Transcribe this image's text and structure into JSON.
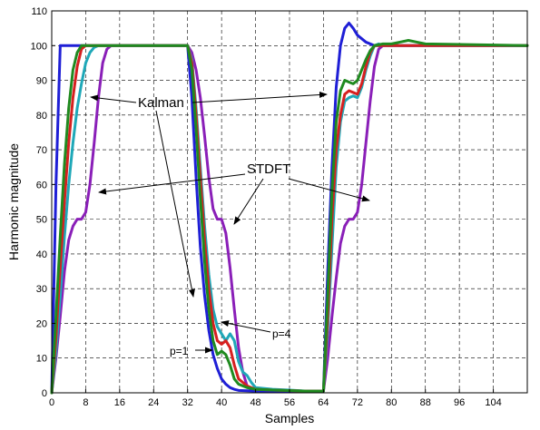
{
  "chart_data": {
    "type": "line",
    "title": "",
    "xlabel": "Samples",
    "ylabel": "Harmonic magnitude",
    "xlim": [
      0,
      112
    ],
    "ylim": [
      0,
      110
    ],
    "x_ticks": [
      0,
      8,
      16,
      24,
      32,
      40,
      48,
      56,
      64,
      72,
      80,
      88,
      96,
      104
    ],
    "y_ticks": [
      0,
      10,
      20,
      30,
      40,
      50,
      60,
      70,
      80,
      90,
      100,
      110
    ],
    "grid": true,
    "series": [
      {
        "color": "#8a1fb8",
        "points": [
          [
            0,
            0
          ],
          [
            1,
            10
          ],
          [
            2,
            22
          ],
          [
            3,
            35
          ],
          [
            4,
            44
          ],
          [
            5,
            48
          ],
          [
            6,
            50
          ],
          [
            7,
            50
          ],
          [
            8,
            52
          ],
          [
            9,
            60
          ],
          [
            10,
            72
          ],
          [
            11,
            85
          ],
          [
            12,
            95
          ],
          [
            13,
            99
          ],
          [
            14,
            100
          ],
          [
            16,
            100
          ],
          [
            32,
            100
          ],
          [
            33,
            98
          ],
          [
            34,
            93
          ],
          [
            35,
            85
          ],
          [
            36,
            74
          ],
          [
            37,
            62
          ],
          [
            38,
            53
          ],
          [
            39,
            50
          ],
          [
            40,
            50
          ],
          [
            41,
            46
          ],
          [
            42,
            36
          ],
          [
            43,
            24
          ],
          [
            44,
            13
          ],
          [
            45,
            6
          ],
          [
            46,
            2
          ],
          [
            47,
            1
          ],
          [
            48,
            0.5
          ],
          [
            64,
            0.5
          ],
          [
            65,
            10
          ],
          [
            66,
            22
          ],
          [
            67,
            33
          ],
          [
            68,
            43
          ],
          [
            69,
            48
          ],
          [
            70,
            50
          ],
          [
            71,
            50
          ],
          [
            72,
            52
          ],
          [
            73,
            60
          ],
          [
            74,
            72
          ],
          [
            75,
            84
          ],
          [
            76,
            94
          ],
          [
            77,
            99
          ],
          [
            78,
            100
          ],
          [
            112,
            100
          ]
        ]
      },
      {
        "color": "#1f1fd6",
        "points": [
          [
            0,
            0
          ],
          [
            1,
            60
          ],
          [
            2,
            100
          ],
          [
            32,
            100
          ],
          [
            33,
            85
          ],
          [
            34,
            62
          ],
          [
            35,
            42
          ],
          [
            36,
            28
          ],
          [
            37,
            18
          ],
          [
            38,
            11
          ],
          [
            39,
            7
          ],
          [
            40,
            4
          ],
          [
            41,
            2.5
          ],
          [
            42,
            1.5
          ],
          [
            43,
            1
          ],
          [
            44,
            0.7
          ],
          [
            48,
            0.5
          ],
          [
            64,
            0.5
          ],
          [
            65,
            35
          ],
          [
            66,
            65
          ],
          [
            67,
            88
          ],
          [
            68,
            100
          ],
          [
            69,
            105
          ],
          [
            70,
            106.5
          ],
          [
            71,
            105
          ],
          [
            72,
            103
          ],
          [
            74,
            101
          ],
          [
            76,
            100
          ],
          [
            112,
            100
          ]
        ]
      },
      {
        "color": "#1fa8b8",
        "points": [
          [
            0,
            0
          ],
          [
            1,
            12
          ],
          [
            2,
            28
          ],
          [
            3,
            45
          ],
          [
            4,
            60
          ],
          [
            5,
            72
          ],
          [
            6,
            82
          ],
          [
            7,
            89
          ],
          [
            8,
            95
          ],
          [
            9,
            98
          ],
          [
            10,
            99.5
          ],
          [
            11,
            100
          ],
          [
            32,
            100
          ],
          [
            33,
            96
          ],
          [
            34,
            82
          ],
          [
            35,
            65
          ],
          [
            36,
            48
          ],
          [
            37,
            34
          ],
          [
            38,
            24
          ],
          [
            39,
            19
          ],
          [
            40,
            17
          ],
          [
            41,
            15
          ],
          [
            42,
            17
          ],
          [
            43,
            15
          ],
          [
            44,
            9
          ],
          [
            45,
            6
          ],
          [
            46,
            5
          ],
          [
            47,
            3
          ],
          [
            48,
            1.5
          ],
          [
            52,
            1
          ],
          [
            56,
            0.8
          ],
          [
            60,
            0.5
          ],
          [
            64,
            0.5
          ],
          [
            65,
            18
          ],
          [
            66,
            42
          ],
          [
            67,
            65
          ],
          [
            68,
            78
          ],
          [
            69,
            84
          ],
          [
            70,
            85
          ],
          [
            71,
            85.5
          ],
          [
            72,
            85
          ],
          [
            73,
            88
          ],
          [
            74,
            93
          ],
          [
            75,
            97
          ],
          [
            76,
            100
          ],
          [
            77,
            100.5
          ],
          [
            78,
            100
          ],
          [
            80,
            100
          ],
          [
            112,
            100
          ]
        ]
      },
      {
        "color": "#d62020",
        "points": [
          [
            0,
            0
          ],
          [
            1,
            16
          ],
          [
            2,
            36
          ],
          [
            3,
            55
          ],
          [
            4,
            72
          ],
          [
            5,
            85
          ],
          [
            6,
            94
          ],
          [
            7,
            99
          ],
          [
            8,
            100
          ],
          [
            32,
            100
          ],
          [
            33,
            95
          ],
          [
            34,
            80
          ],
          [
            35,
            62
          ],
          [
            36,
            44
          ],
          [
            37,
            30
          ],
          [
            38,
            20
          ],
          [
            39,
            15
          ],
          [
            40,
            14
          ],
          [
            41,
            15
          ],
          [
            42,
            13
          ],
          [
            43,
            8
          ],
          [
            44,
            4
          ],
          [
            45,
            3
          ],
          [
            46,
            2
          ],
          [
            48,
            1
          ],
          [
            52,
            0.8
          ],
          [
            60,
            0.5
          ],
          [
            64,
            0.5
          ],
          [
            65,
            22
          ],
          [
            66,
            50
          ],
          [
            67,
            70
          ],
          [
            68,
            80
          ],
          [
            69,
            86
          ],
          [
            70,
            87
          ],
          [
            71,
            86.5
          ],
          [
            72,
            86
          ],
          [
            73,
            89
          ],
          [
            74,
            94
          ],
          [
            75,
            98
          ],
          [
            76,
            100
          ],
          [
            77,
            100
          ],
          [
            112,
            100
          ]
        ]
      },
      {
        "color": "#1f8a1f",
        "points": [
          [
            0,
            0
          ],
          [
            1,
            22
          ],
          [
            2,
            45
          ],
          [
            3,
            66
          ],
          [
            4,
            82
          ],
          [
            5,
            93
          ],
          [
            6,
            98
          ],
          [
            7,
            100
          ],
          [
            32,
            100
          ],
          [
            33,
            93
          ],
          [
            34,
            76
          ],
          [
            35,
            56
          ],
          [
            36,
            38
          ],
          [
            37,
            24
          ],
          [
            38,
            15
          ],
          [
            39,
            11
          ],
          [
            40,
            12
          ],
          [
            41,
            11
          ],
          [
            42,
            8
          ],
          [
            43,
            4
          ],
          [
            44,
            2.5
          ],
          [
            45,
            2
          ],
          [
            46,
            1.5
          ],
          [
            48,
            1
          ],
          [
            52,
            0.8
          ],
          [
            60,
            0.5
          ],
          [
            64,
            0.5
          ],
          [
            65,
            28
          ],
          [
            66,
            58
          ],
          [
            67,
            78
          ],
          [
            68,
            87
          ],
          [
            69,
            90
          ],
          [
            70,
            89.5
          ],
          [
            71,
            89
          ],
          [
            72,
            90
          ],
          [
            73,
            93
          ],
          [
            74,
            96
          ],
          [
            75,
            98.5
          ],
          [
            76,
            100
          ],
          [
            78,
            100.5
          ],
          [
            80,
            100.5
          ],
          [
            82,
            101
          ],
          [
            84,
            101.5
          ],
          [
            86,
            101
          ],
          [
            88,
            100.5
          ],
          [
            112,
            100
          ]
        ]
      }
    ],
    "annotations": {
      "kalman": "Kalman",
      "stdft": "STDFT",
      "p1": "p=1",
      "p4": "p=4"
    }
  }
}
